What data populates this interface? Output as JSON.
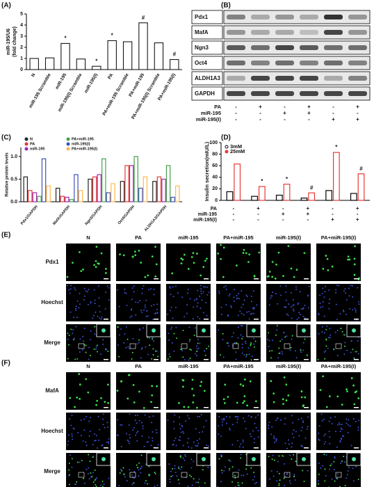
{
  "panel_labels": [
    "(A)",
    "(B)",
    "(C)",
    "(D)",
    "(E)",
    "(F)"
  ],
  "chart_data": [
    {
      "type": "bar",
      "ylabel": [
        "miR-195/U6",
        "(fold change)"
      ],
      "categories": [
        "N",
        "miR-195 Scramble",
        "miR-195",
        "miR-195(I) Scramble",
        "miR-195(I)",
        "PA",
        "PA+miR-195 Scramble",
        "PA+miR-195",
        "PA+miR-195(I) Scramble",
        "PA+miR-195(I)"
      ],
      "values": [
        1,
        1.05,
        2.35,
        0.95,
        0.3,
        2.6,
        2.5,
        4.2,
        2.4,
        0.9
      ],
      "color": "#ffffff",
      "ylim": [
        0,
        5
      ],
      "yticks": [
        0,
        1,
        2,
        3,
        4,
        5
      ],
      "annotations": [
        {
          "text": "*",
          "index": 2
        },
        {
          "text": "*",
          "index": 4
        },
        {
          "text": "*",
          "index": 5
        },
        {
          "text": "#",
          "index": 7
        },
        {
          "text": "#",
          "index": 9
        }
      ]
    },
    {
      "type": "bar",
      "ylabel": "Relative protein levels",
      "categories": [
        "Pdx1/GAPDH",
        "MafA/GAPDH",
        "Ngn3/GAPDH",
        "Oct4/GAPDH",
        "ALDH1A3/GAPDH"
      ],
      "series": [
        {
          "name": "N",
          "color": "#222222",
          "values": [
            0.55,
            0.3,
            0.5,
            0.45,
            0.45
          ]
        },
        {
          "name": "PA",
          "color": "#e53935",
          "values": [
            0.25,
            0.12,
            0.55,
            0.8,
            0.55
          ]
        },
        {
          "name": "miR-195",
          "color": "#9c27b0",
          "values": [
            0.2,
            0.1,
            0.6,
            0.8,
            0.5
          ]
        },
        {
          "name": "PA+miR-195",
          "color": "#43a047",
          "values": [
            0.12,
            0.05,
            0.95,
            1.0,
            0.8
          ]
        },
        {
          "name": "miR-195(I)",
          "color": "#3f51b5",
          "values": [
            0.95,
            0.6,
            0.2,
            0.3,
            0.1
          ]
        },
        {
          "name": "PA+miR-195(I)",
          "color": "#ffb74d",
          "values": [
            0.35,
            0.25,
            0.4,
            0.55,
            0.35
          ]
        }
      ],
      "ylim": [
        0,
        1.2
      ],
      "yticks": [
        {
          "value": 0,
          "label": "0.0"
        },
        {
          "value": 0.5,
          "label": "0.5"
        },
        {
          "value": 1,
          "label": "1.0"
        }
      ],
      "legend": "top-left"
    },
    {
      "type": "bar",
      "ylabel": "Insulin secretion(mIU/L)",
      "categories": null,
      "series": [
        {
          "name": "3mM",
          "color": "#000000",
          "values": [
            15,
            7,
            9,
            4,
            17,
            12
          ]
        },
        {
          "name": "25mM",
          "color": "#e53935",
          "values": [
            63,
            24,
            28,
            13,
            83,
            46
          ]
        }
      ],
      "ylim": [
        0,
        100
      ],
      "yticks": [
        0,
        20,
        40,
        60,
        80,
        100
      ],
      "legend": "top-left",
      "annotations": [
        {
          "text": "*",
          "index": 1,
          "series": 1
        },
        {
          "text": "*",
          "index": 2,
          "series": 1
        },
        {
          "text": "#",
          "index": 3,
          "series": 1
        },
        {
          "text": "*",
          "index": 4,
          "series": 1
        },
        {
          "text": "#",
          "index": 5,
          "series": 1
        }
      ],
      "conditions": [
        {
          "name": "PA",
          "signs": [
            "-",
            "+",
            "-",
            "+",
            "-",
            "+"
          ]
        },
        {
          "name": "miR-195",
          "signs": [
            "-",
            "-",
            "+",
            "+",
            "-",
            "-"
          ]
        },
        {
          "name": "miR-195(I)",
          "signs": [
            "-",
            "-",
            "-",
            "-",
            "+",
            "+"
          ]
        }
      ]
    }
  ],
  "blot": {
    "proteins": [
      "Pdx1",
      "MafA",
      "Ngn3",
      "Oct4",
      "ALDH1A3",
      "GAPDH"
    ],
    "conditions": [
      {
        "name": "PA",
        "signs": [
          "-",
          "+",
          "-",
          "+",
          "-",
          "+"
        ]
      },
      {
        "name": "miR-195",
        "signs": [
          "-",
          "-",
          "+",
          "+",
          "-",
          "-"
        ]
      },
      {
        "name": "miR-195(I)",
        "signs": [
          "-",
          "-",
          "-",
          "-",
          "+",
          "+"
        ]
      }
    ]
  },
  "microscopy": [
    {
      "columns": [
        "N",
        "PA",
        "miR-195",
        "PA+miR-195",
        "miR-195(I)",
        "PA+miR-195(I)"
      ],
      "rows": [
        "Pdx1",
        "Hoechst",
        "Merge"
      ]
    },
    {
      "columns": [
        "N",
        "PA",
        "miR-195",
        "PA+miR-195",
        "miR-195(I)",
        "PA+miR-195(I)"
      ],
      "rows": [
        "MafA",
        "Hoechst",
        "Merge"
      ]
    }
  ]
}
